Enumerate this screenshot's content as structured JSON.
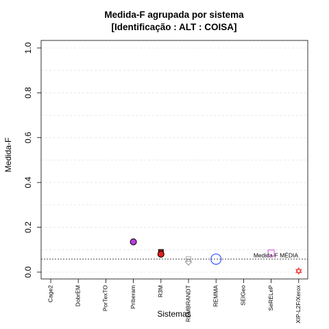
{
  "chart_data": {
    "type": "scatter",
    "title": [
      "Medida-F agrupada por sistema",
      "[Identificação : ALT : COISA]"
    ],
    "xlabel": "Sistemas",
    "ylabel": "Medida-F",
    "ylim": [
      0,
      1
    ],
    "yticks": [
      "0.0",
      "0.2",
      "0.4",
      "0.6",
      "0.8",
      "1.0"
    ],
    "ytick_values": [
      0,
      0.2,
      0.4,
      0.6,
      0.8,
      1.0
    ],
    "grid": true,
    "categories": [
      "Cage2",
      "DobrEM",
      "PorTexTO",
      "Priberam",
      "R3M",
      "REMBRANDT",
      "REMMA",
      "SEIGeo",
      "SeRELeP",
      "XIP-L2F/Xerox"
    ],
    "reference_line": {
      "label": "Medida-F MÉDIA",
      "value": 0.058
    },
    "points": [
      {
        "category": "Priberam",
        "y": 0.135,
        "shape": "circle-filled",
        "fill": "#b83cdc",
        "stroke": "#000000",
        "size": "medium"
      },
      {
        "category": "R3M",
        "y": 0.09,
        "shape": "square-filled",
        "fill": "#b0181c",
        "stroke": "#000000",
        "size": "small"
      },
      {
        "category": "R3M",
        "y": 0.08,
        "shape": "circle-filled",
        "fill": "#e02020",
        "stroke": "#000000",
        "size": "medium"
      },
      {
        "category": "REMBRANDT",
        "y": 0.058,
        "shape": "square-open",
        "fill": "none",
        "stroke": "#b0b0b0",
        "size": "small"
      },
      {
        "category": "REMBRANDT",
        "y": 0.045,
        "shape": "diamond-open",
        "fill": "none",
        "stroke": "#909090",
        "size": "medium"
      },
      {
        "category": "REMMA",
        "y": 0.058,
        "shape": "circle-open",
        "fill": "none",
        "stroke": "#1f3fff",
        "size": "large"
      },
      {
        "category": "SeRELeP",
        "y": 0.085,
        "shape": "square-open",
        "fill": "none",
        "stroke": "#d84ad8",
        "size": "medium"
      },
      {
        "category": "XIP-L2F/Xerox",
        "y": 0.005,
        "shape": "star-open",
        "fill": "none",
        "stroke": "#f03030",
        "size": "medium"
      }
    ]
  }
}
